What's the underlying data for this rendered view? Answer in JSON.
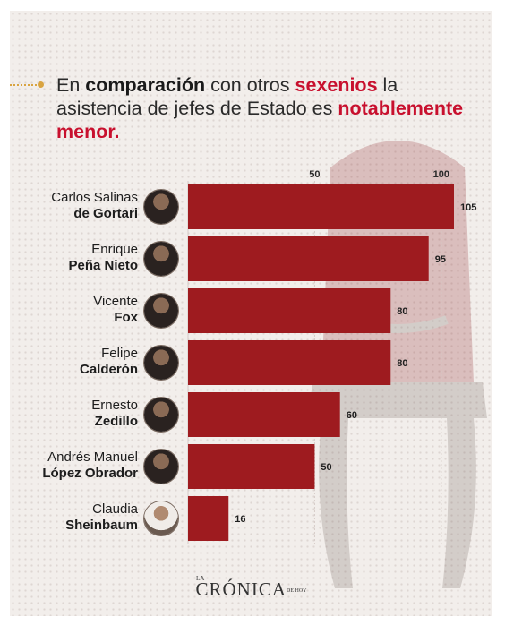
{
  "title": {
    "p1": "En ",
    "b1": "comparación",
    "p2": " con otros ",
    "r1": "sexenios",
    "p3": " la asistencia de jefes de Estado es ",
    "r2": "notablemente menor."
  },
  "chart_data": {
    "type": "bar",
    "orientation": "horizontal",
    "categories": [
      "Carlos Salinas de Gortari",
      "Enrique Peña Nieto",
      "Vicente Fox",
      "Felipe Calderón",
      "Ernesto Zedillo",
      "Andrés Manuel López Obrador",
      "Claudia Sheinbaum"
    ],
    "values": [
      105,
      95,
      80,
      80,
      60,
      50,
      16
    ],
    "xticks": [
      50,
      100
    ],
    "xlim": [
      0,
      105
    ],
    "grid": true,
    "bar_color": "#9e1b1f"
  },
  "people": [
    {
      "first": "Carlos Salinas",
      "last": "de Gortari",
      "avatar": "portrait-icon"
    },
    {
      "first": "Enrique",
      "last": "Peña Nieto",
      "avatar": "portrait-icon"
    },
    {
      "first": "Vicente",
      "last": "Fox",
      "avatar": "portrait-icon"
    },
    {
      "first": "Felipe",
      "last": "Calderón",
      "avatar": "portrait-icon"
    },
    {
      "first": "Ernesto",
      "last": "Zedillo",
      "avatar": "portrait-icon"
    },
    {
      "first": "Andrés Manuel",
      "last": "López Obrador",
      "avatar": "portrait-icon"
    },
    {
      "first": "Claudia",
      "last": "Sheinbaum",
      "avatar": "portrait-icon"
    }
  ],
  "logo": {
    "la": "LA",
    "main": "CRÓNICA",
    "dehoy": "DE HOY"
  },
  "colors": {
    "accent_red": "#c8102e",
    "bar": "#9e1b1f",
    "bullet": "#d9a441"
  }
}
